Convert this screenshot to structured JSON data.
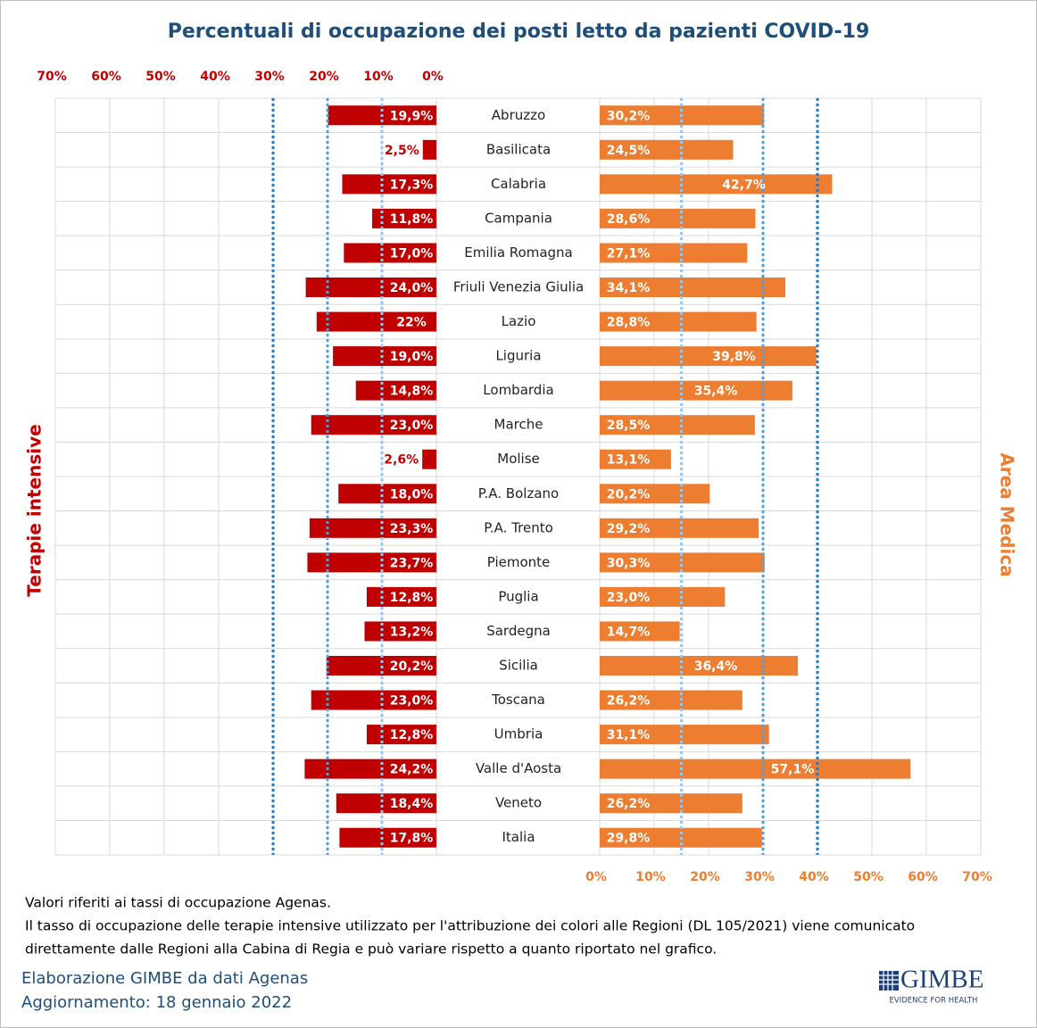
{
  "chart_data": {
    "type": "butterfly",
    "title": "Percentuali di occupazione dei posti letto da pazienti COVID-19",
    "categories": [
      "Abruzzo",
      "Basilicata",
      "Calabria",
      "Campania",
      "Emilia Romagna",
      "Friuli Venezia Giulia",
      "Lazio",
      "Liguria",
      "Lombardia",
      "Marche",
      "Molise",
      "P.A. Bolzano",
      "P.A. Trento",
      "Piemonte",
      "Puglia",
      "Sardegna",
      "Sicilia",
      "Toscana",
      "Umbria",
      "Valle d'Aosta",
      "Veneto",
      "Italia"
    ],
    "series": [
      {
        "name": "Terapie intensive",
        "color": "#c00000",
        "side": "left",
        "values": [
          19.9,
          2.5,
          17.3,
          11.8,
          17.0,
          24.0,
          22,
          19.0,
          14.8,
          23.0,
          2.6,
          18.0,
          23.3,
          23.7,
          12.8,
          13.2,
          20.2,
          23.0,
          12.8,
          24.2,
          18.4,
          17.8
        ],
        "value_labels": [
          "19,9%",
          "2,5%",
          "17,3%",
          "11,8%",
          "17,0%",
          "24,0%",
          "22%",
          "19,0%",
          "14,8%",
          "23,0%",
          "2,6%",
          "18,0%",
          "23,3%",
          "23,7%",
          "12,8%",
          "13,2%",
          "20,2%",
          "23,0%",
          "12,8%",
          "24,2%",
          "18,4%",
          "17,8%"
        ],
        "thresholds": [
          {
            "value": 10,
            "color": "#9dc3e6"
          },
          {
            "value": 20,
            "color": "#5b9bd5"
          },
          {
            "value": 30,
            "color": "#2e75b6"
          }
        ]
      },
      {
        "name": "Area Medica",
        "color": "#ed7d31",
        "side": "right",
        "values": [
          30.2,
          24.5,
          42.7,
          28.6,
          27.1,
          34.1,
          28.8,
          39.8,
          35.4,
          28.5,
          13.1,
          20.2,
          29.2,
          30.3,
          23.0,
          14.7,
          36.4,
          26.2,
          31.1,
          57.1,
          26.2,
          29.8
        ],
        "value_labels": [
          "30,2%",
          "24,5%",
          "42,7%",
          "28,6%",
          "27,1%",
          "34,1%",
          "28,8%",
          "39,8%",
          "35,4%",
          "28,5%",
          "13,1%",
          "20,2%",
          "29,2%",
          "30,3%",
          "23,0%",
          "14,7%",
          "36,4%",
          "26,2%",
          "31,1%",
          "57,1%",
          "26,2%",
          "29,8%"
        ],
        "thresholds": [
          {
            "value": 15,
            "color": "#9dc3e6"
          },
          {
            "value": 30,
            "color": "#5b9bd5"
          },
          {
            "value": 40,
            "color": "#2e75b6"
          }
        ]
      }
    ],
    "xlim": [
      0,
      70
    ],
    "xticks": [
      {
        "value": 0,
        "label": "0%"
      },
      {
        "value": 10,
        "label": "10%"
      },
      {
        "value": 20,
        "label": "20%"
      },
      {
        "value": 30,
        "label": "30%"
      },
      {
        "value": 40,
        "label": "40%"
      },
      {
        "value": 50,
        "label": "50%"
      },
      {
        "value": 60,
        "label": "60%"
      },
      {
        "value": 70,
        "label": "70%"
      }
    ],
    "grid": true
  },
  "notes": [
    "Valori riferiti  ai tassi di occupazione Agenas.",
    "Il tasso di occupazione delle terapie intensive utilizzato per l'attribuzione dei colori alle Regioni (DL 105/2021) viene comunicato",
    "direttamente dalle Regioni alla Cabina di Regia e può variare rispetto a quanto riportato nel grafico."
  ],
  "source": "Elaborazione GIMBE da dati Agenas",
  "updated": "Aggiornamento: 18 gennaio 2022",
  "logo": {
    "name": "GIMBE",
    "tagline": "EVIDENCE FOR HEALTH"
  }
}
